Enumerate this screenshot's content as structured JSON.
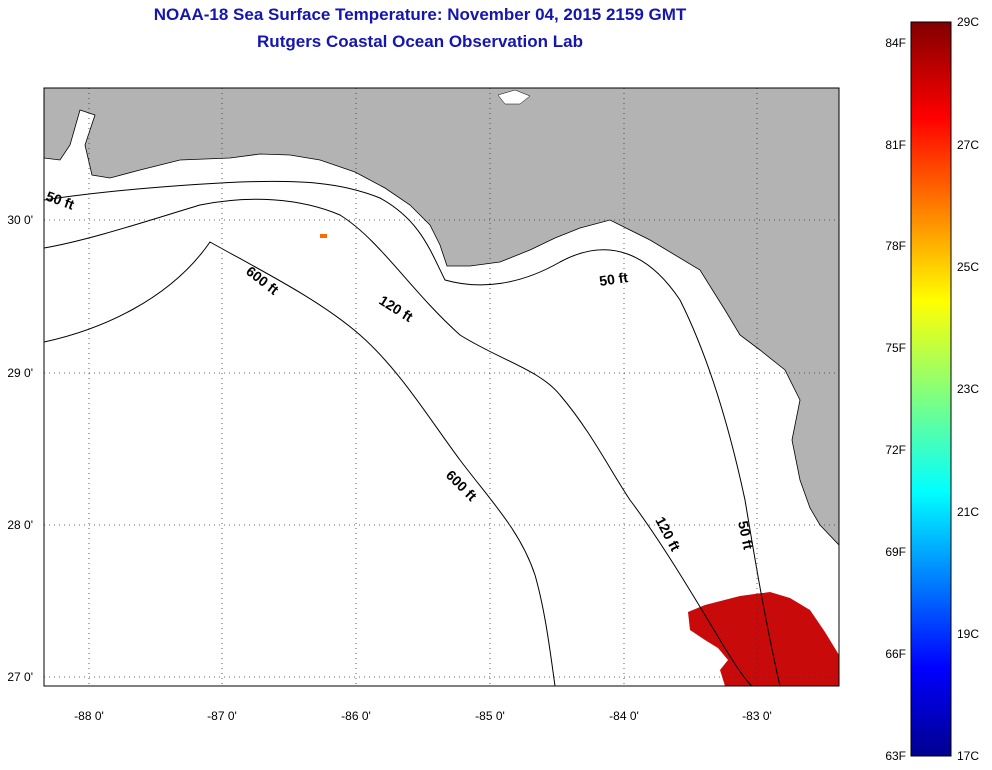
{
  "header": {
    "title": "NOAA-18 Sea Surface Temperature:  November 04, 2015 2159 GMT",
    "subtitle": "Rutgers Coastal Ocean Observation Lab"
  },
  "map": {
    "lon_ticks": [
      "-88 0'",
      "-87 0'",
      "-86 0'",
      "-85 0'",
      "-84 0'",
      "-83 0'"
    ],
    "lat_ticks": [
      "30 0'",
      "29 0'",
      "28 0'",
      "27 0'"
    ],
    "contour_labels": [
      "50 ft",
      "600 ft",
      "120 ft",
      "50 ft",
      "600 ft",
      "120 ft",
      "50 ft"
    ],
    "colors": {
      "land": "#b3b3b3",
      "ocean": "#ffffff",
      "sst_patch": "#c80a0a"
    }
  },
  "colorbar": {
    "f_labels": [
      "84F",
      "81F",
      "78F",
      "75F",
      "72F",
      "69F",
      "66F",
      "63F"
    ],
    "c_labels": [
      "29C",
      "27C",
      "25C",
      "23C",
      "21C",
      "19C",
      "17C"
    ]
  }
}
